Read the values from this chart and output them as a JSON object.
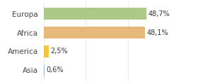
{
  "categories": [
    "Europa",
    "Africa",
    "America",
    "Asia"
  ],
  "values": [
    48.7,
    48.1,
    2.5,
    0.6
  ],
  "labels": [
    "48,7%",
    "48,1%",
    "2,5%",
    "0,6%"
  ],
  "bar_colors": [
    "#adc98a",
    "#e8b87a",
    "#f0c840",
    "#9ab0d8"
  ],
  "background_color": "#ffffff",
  "xlim": [
    0,
    62
  ],
  "figsize": [
    2.8,
    1.2
  ],
  "dpi": 100
}
